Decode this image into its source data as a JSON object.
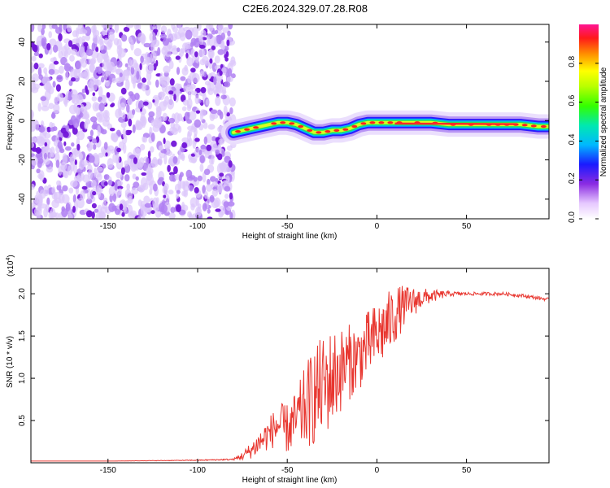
{
  "figure": {
    "title": "C2E6.2024.329.07.28.R08"
  },
  "chart_data": [
    {
      "type": "heatmap",
      "xlabel": "Height of straight line (km)",
      "ylabel": "Frequency (Hz)",
      "xlim": [
        -193,
        96
      ],
      "ylim": [
        -50,
        49
      ],
      "xticks": [
        -150,
        -100,
        -50,
        0,
        50
      ],
      "yticks": [
        -40,
        -20,
        0,
        20,
        40
      ],
      "noise_region_x": [
        -193,
        -80
      ],
      "ridge": {
        "x": [
          -80,
          -75,
          -70,
          -60,
          -55,
          -50,
          -45,
          -40,
          -35,
          -30,
          -25,
          -20,
          -15,
          -10,
          -5,
          0,
          5,
          10,
          20,
          30,
          40,
          50,
          60,
          70,
          80,
          90,
          96
        ],
        "y": [
          -6,
          -5,
          -4,
          -2,
          -1,
          -1,
          -2,
          -4,
          -6,
          -6,
          -5,
          -5,
          -4,
          -2,
          -1,
          -1,
          -1,
          -1,
          -1,
          -1,
          -2,
          -2,
          -2,
          -2,
          -2,
          -3,
          -3
        ]
      },
      "colorbar": {
        "label": "Normalized spectral amplitude",
        "ticks": [
          "0.0",
          "0.2",
          "0.4",
          "0.6",
          "0.8"
        ],
        "tick_values": [
          0.0,
          0.2,
          0.4,
          0.6,
          0.8
        ],
        "range": [
          0,
          1
        ]
      }
    },
    {
      "type": "line",
      "xlabel": "Height of straight line (km)",
      "ylabel": "SNR (10 * v/v)",
      "multiplier": "(x10",
      "multiplier_exp": "4",
      "multiplier_close": ")",
      "xlim": [
        -193,
        96
      ],
      "ylim": [
        0,
        2.3
      ],
      "xticks": [
        -150,
        -100,
        -50,
        0,
        50
      ],
      "yticks": [
        "0.5",
        "1.0",
        "1.5",
        "2.0"
      ],
      "ytick_values": [
        0.5,
        1.0,
        1.5,
        2.0
      ],
      "color": "#e8362f",
      "series": [
        {
          "x": [
            -193,
            -150,
            -100,
            -80,
            -75,
            -70,
            -65,
            -60,
            -55,
            -50,
            -45,
            -40,
            -35,
            -30,
            -25,
            -20,
            -15,
            -10,
            -5,
            0,
            5,
            10,
            15,
            20,
            25,
            30,
            40,
            50,
            60,
            70,
            80,
            90,
            96
          ],
          "y": [
            0.02,
            0.02,
            0.03,
            0.04,
            0.08,
            0.15,
            0.25,
            0.35,
            0.45,
            0.4,
            0.5,
            0.65,
            0.8,
            0.9,
            1.0,
            1.1,
            1.2,
            1.25,
            1.4,
            1.5,
            1.6,
            1.75,
            1.85,
            1.9,
            1.95,
            1.97,
            2.0,
            2.0,
            2.0,
            2.0,
            1.98,
            1.95,
            1.93
          ],
          "noise": [
            0,
            0,
            0.005,
            0.01,
            0.05,
            0.1,
            0.15,
            0.2,
            0.25,
            0.3,
            0.35,
            0.5,
            0.6,
            0.6,
            0.6,
            0.5,
            0.45,
            0.4,
            0.4,
            0.4,
            0.4,
            0.35,
            0.25,
            0.18,
            0.12,
            0.08,
            0.03,
            0.02,
            0.02,
            0.02,
            0.02,
            0.02,
            0.02
          ]
        }
      ]
    }
  ]
}
